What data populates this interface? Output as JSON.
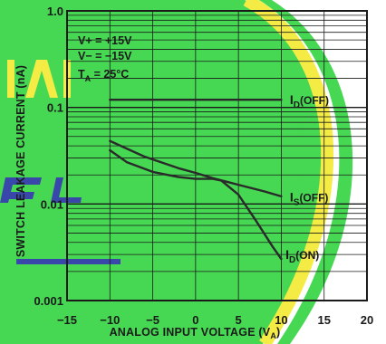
{
  "chart_data": {
    "type": "line",
    "title": "",
    "xlabel": "ANALOG INPUT VOLTAGE (V",
    "xlabel_sub": "A",
    "xlabel_close": ")",
    "ylabel": "SWITCH LEAKAGE CURRENT (nA)",
    "xlim": [
      -15,
      20
    ],
    "ylim": [
      0.001,
      1.0
    ],
    "yscale": "log",
    "grid": true,
    "x_ticks": [
      "−15",
      "−10",
      "−5",
      "0",
      "5",
      "10",
      "15",
      "20"
    ],
    "y_ticks": [
      "1.0",
      "0.1",
      "0.01",
      "0.001"
    ],
    "conditions": {
      "vplus": "V+ = +15V",
      "vminus": "V− = −15V",
      "ta_main": "T",
      "ta_sub": "A",
      "ta_rest": " = 25°C"
    },
    "series": [
      {
        "name_main": "I",
        "name_sub": "D",
        "name_rest": "(OFF)",
        "x": [
          -10,
          10
        ],
        "y": [
          0.12,
          0.12
        ]
      },
      {
        "name_main": "I",
        "name_sub": "S",
        "name_rest": "(OFF)",
        "x": [
          -10,
          -6,
          -2,
          0,
          2,
          5,
          8,
          10
        ],
        "y": [
          0.045,
          0.031,
          0.0235,
          0.021,
          0.0185,
          0.0158,
          0.0135,
          0.012
        ]
      },
      {
        "name_main": "I",
        "name_sub": "D",
        "name_rest": "(ON)",
        "x": [
          -10,
          -8,
          -5,
          -2,
          0,
          2,
          3,
          5,
          7,
          9,
          10
        ],
        "y": [
          0.036,
          0.027,
          0.0215,
          0.019,
          0.0182,
          0.0182,
          0.0175,
          0.0125,
          0.0068,
          0.0036,
          0.0027
        ]
      }
    ],
    "colors": {
      "background": "#ffffff",
      "watermark_green": "#3dd64a",
      "watermark_yellow": "#f4ec3c",
      "watermark_blue": "#2f3ea6",
      "ink": "#1a1a1a"
    }
  }
}
